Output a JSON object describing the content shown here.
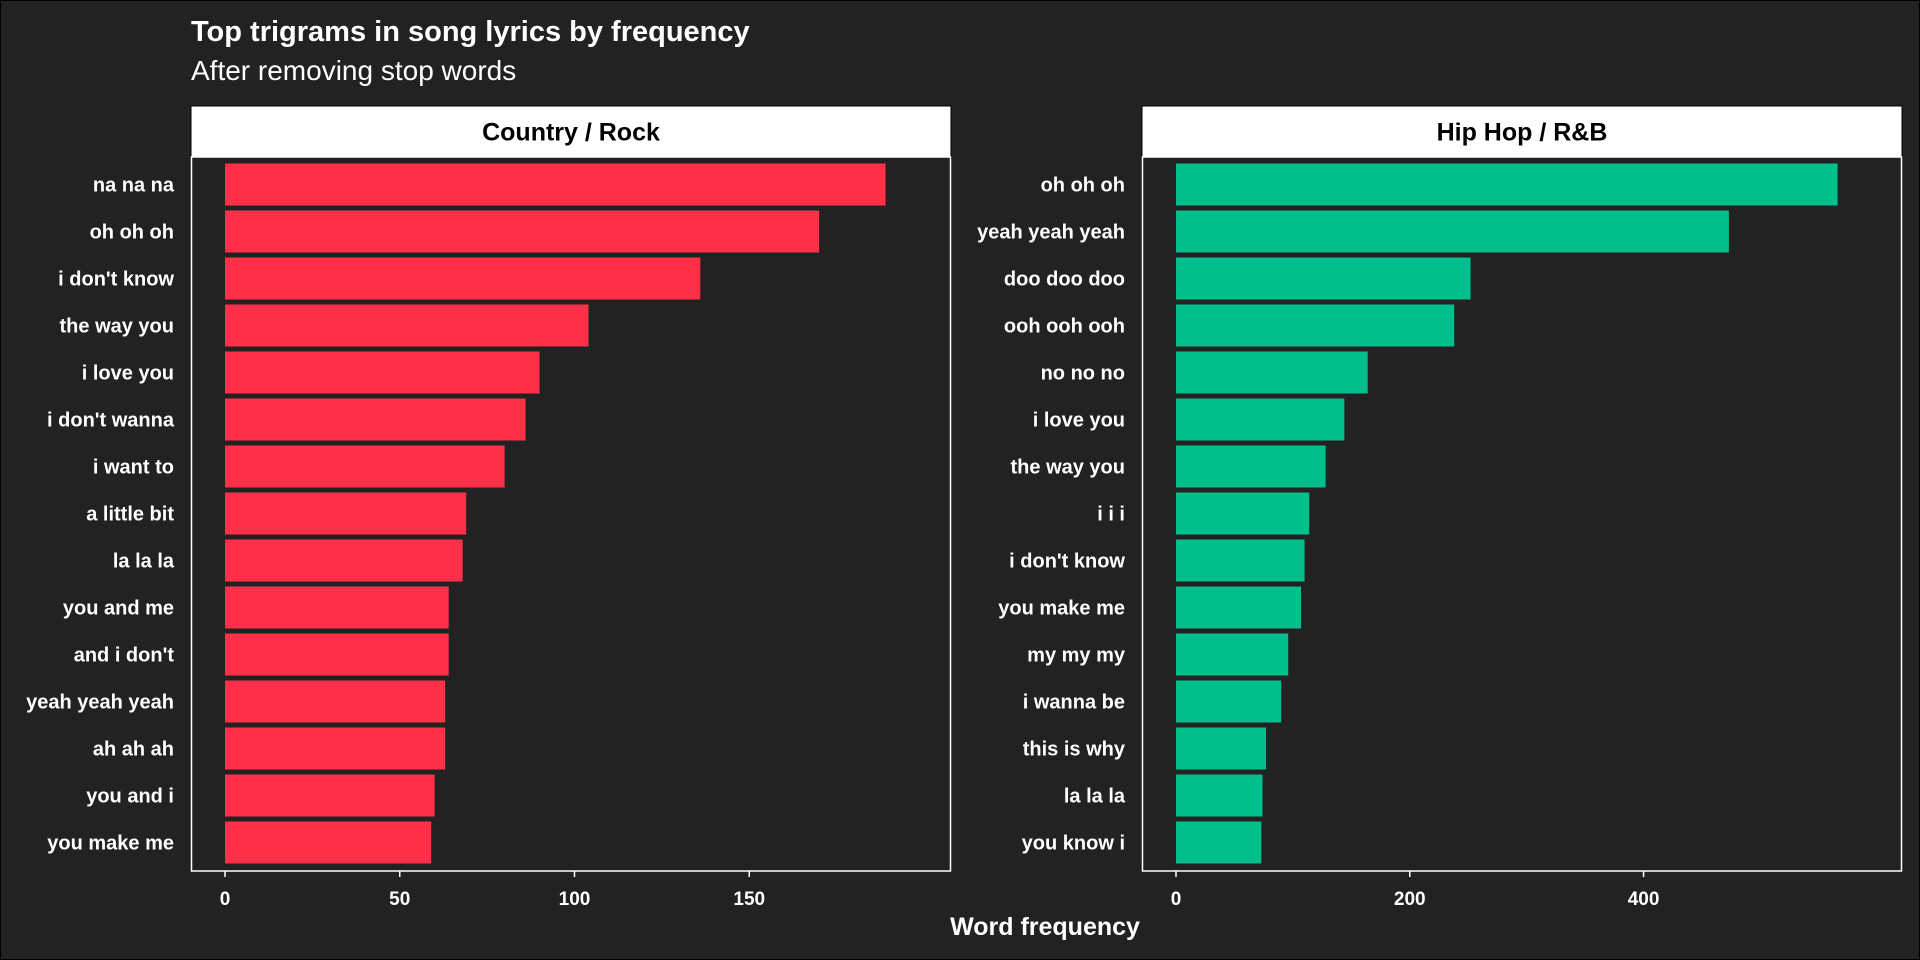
{
  "title": "Top trigrams in song lyrics by frequency",
  "subtitle": "After removing stop words",
  "chart_data": {
    "type": "bar",
    "orientation": "horizontal",
    "xlabel": "Word frequency",
    "ylabel": "",
    "grid": false,
    "panels": [
      {
        "name": "Country / Rock",
        "color": "#ff3047",
        "xlim": [
          0,
          198
        ],
        "ticks": [
          0,
          50,
          100,
          150
        ],
        "categories": [
          "na na na",
          "oh oh oh",
          "i don't know",
          "the way you",
          "i love you",
          "i don't wanna",
          "i want to",
          "a little bit",
          "la la la",
          "you and me",
          "and i don't",
          "yeah yeah yeah",
          "ah ah ah",
          "you and i",
          "you make me"
        ],
        "values": [
          189,
          170,
          136,
          104,
          90,
          86,
          80,
          69,
          68,
          64,
          64,
          63,
          63,
          60,
          59
        ]
      },
      {
        "name": "Hip Hop / R&B",
        "color": "#00bf8c",
        "xlim": [
          0,
          592
        ],
        "ticks": [
          0,
          200,
          400
        ],
        "categories": [
          "oh oh oh",
          "yeah yeah yeah",
          "doo doo doo",
          "ooh ooh ooh",
          "no no no",
          "i love you",
          "the way you",
          "i i i",
          "i don't know",
          "you make me",
          "my my my",
          "i wanna be",
          "this is why",
          "la la la",
          "you know i"
        ],
        "values": [
          566,
          473,
          252,
          238,
          164,
          144,
          128,
          114,
          110,
          107,
          96,
          90,
          77,
          74,
          73
        ]
      }
    ]
  }
}
